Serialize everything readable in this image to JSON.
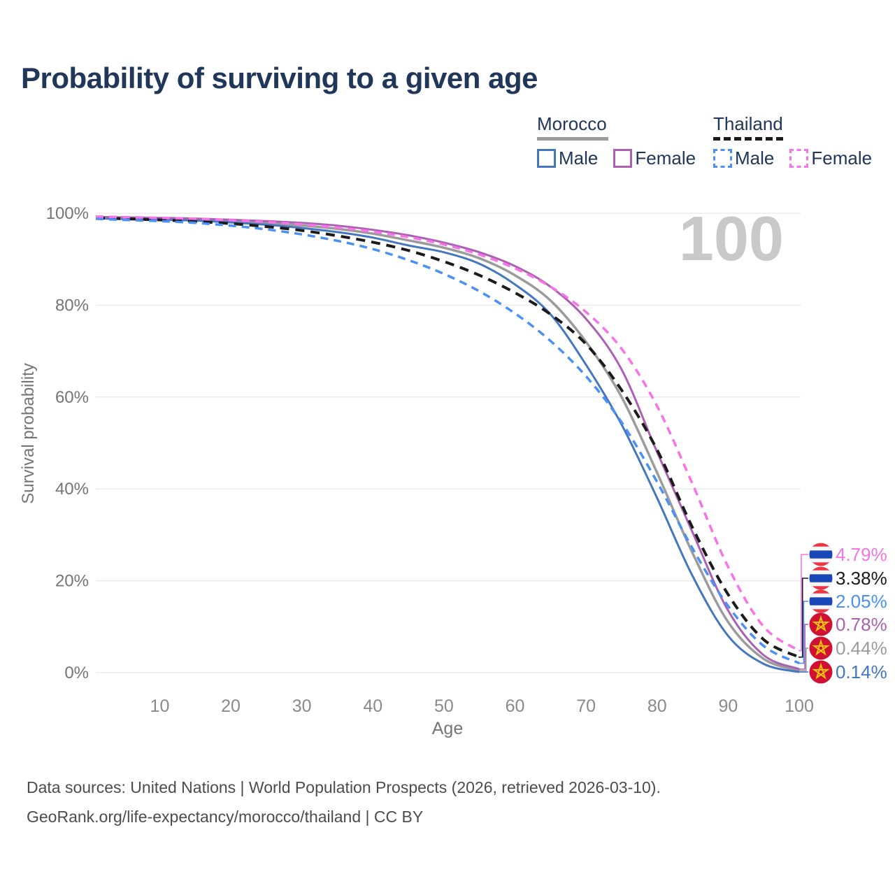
{
  "title": "Probability of surviving to a given age",
  "legend": {
    "groups": [
      {
        "country": "Morocco",
        "line_style": "solid",
        "underline_color": "#9b9b9b",
        "items": [
          {
            "label": "Male",
            "color": "#4577be",
            "dashed": false
          },
          {
            "label": "Female",
            "color": "#ab61b2",
            "dashed": false
          }
        ]
      },
      {
        "country": "Thailand",
        "line_style": "dashed",
        "underline_color": "#1b1b1b",
        "items": [
          {
            "label": "Male",
            "color": "#4b90f5",
            "dashed": true
          },
          {
            "label": "Female",
            "color": "#f873e8",
            "dashed": true
          }
        ]
      }
    ]
  },
  "chart_data": {
    "type": "line",
    "title": "Probability of surviving to a given age",
    "xlabel": "Age",
    "ylabel": "Survival probability",
    "xlim": [
      1,
      100
    ],
    "ylim": [
      0,
      100
    ],
    "grid": "horizontal",
    "watermark": "100",
    "x_ticks": [
      {
        "label": "10",
        "value": 10
      },
      {
        "label": "20",
        "value": 20
      },
      {
        "label": "30",
        "value": 30
      },
      {
        "label": "40",
        "value": 40
      },
      {
        "label": "50",
        "value": 50
      },
      {
        "label": "60",
        "value": 60
      },
      {
        "label": "70",
        "value": 70
      },
      {
        "label": "80",
        "value": 80
      },
      {
        "label": "90",
        "value": 90
      },
      {
        "label": "100",
        "value": 100
      }
    ],
    "y_ticks": [
      {
        "label": "0%",
        "value": 0
      },
      {
        "label": "20%",
        "value": 20
      },
      {
        "label": "40%",
        "value": 40
      },
      {
        "label": "60%",
        "value": 60
      },
      {
        "label": "80%",
        "value": 80
      },
      {
        "label": "100%",
        "value": 100
      }
    ],
    "ages": [
      1,
      5,
      10,
      15,
      20,
      25,
      30,
      35,
      40,
      45,
      50,
      55,
      60,
      65,
      70,
      75,
      80,
      85,
      90,
      95,
      100
    ],
    "series": [
      {
        "id": "morocco-total",
        "country": "Morocco",
        "sex": "combined",
        "color": "#9b9b9b",
        "dashed": false,
        "values": [
          99.05,
          98.9,
          98.8,
          98.6,
          98.3,
          97.9,
          97.35,
          96.6,
          95.55,
          94.1,
          92.5,
          90.2,
          86.5,
          81.0,
          72.0,
          60.0,
          43.5,
          26.0,
          11.0,
          3.0,
          0.44
        ]
      },
      {
        "id": "morocco-male",
        "country": "Morocco",
        "sex": "male",
        "color": "#4577be",
        "dashed": false,
        "values": [
          98.9,
          98.75,
          98.6,
          98.4,
          98.0,
          97.5,
          96.8,
          95.9,
          94.7,
          93.0,
          91.5,
          89.0,
          84.5,
          78.0,
          67.0,
          54.0,
          38.0,
          21.0,
          8.0,
          1.9,
          0.14
        ]
      },
      {
        "id": "morocco-female",
        "country": "Morocco",
        "sex": "female",
        "color": "#ab61b2",
        "dashed": false,
        "values": [
          99.2,
          99.1,
          99.0,
          98.85,
          98.6,
          98.3,
          97.9,
          97.3,
          96.4,
          95.2,
          93.6,
          91.5,
          88.5,
          84.0,
          77.0,
          66.0,
          48.0,
          30.5,
          13.5,
          3.8,
          0.78
        ]
      },
      {
        "id": "thailand-total",
        "country": "Thailand",
        "sex": "combined",
        "color": "#1b1b1b",
        "dashed": true,
        "values": [
          99.0,
          98.8,
          98.55,
          98.2,
          97.75,
          97.1,
          96.25,
          95.1,
          93.7,
          91.9,
          89.5,
          86.5,
          82.7,
          78.0,
          71.5,
          61.5,
          48.5,
          31.5,
          17.0,
          7.2,
          3.38
        ]
      },
      {
        "id": "thailand-male",
        "country": "Thailand",
        "sex": "male",
        "color": "#4b90f5",
        "dashed": true,
        "values": [
          98.8,
          98.55,
          98.3,
          97.9,
          97.3,
          96.5,
          95.4,
          94.0,
          92.2,
          89.8,
          86.8,
          83.0,
          78.2,
          72.2,
          64.5,
          54.5,
          41.5,
          27.0,
          14.5,
          5.8,
          2.05
        ]
      },
      {
        "id": "thailand-female",
        "country": "Thailand",
        "sex": "female",
        "color": "#f873e8",
        "dashed": true,
        "values": [
          99.3,
          99.15,
          99.0,
          98.8,
          98.5,
          98.1,
          97.6,
          96.9,
          96.0,
          94.8,
          93.2,
          91.0,
          88.0,
          84.0,
          78.5,
          70.5,
          58.0,
          41.0,
          23.0,
          10.0,
          4.79
        ]
      }
    ]
  },
  "end_labels": [
    {
      "text": "4.79%",
      "value_percent": 4.79,
      "color": "#f873e8",
      "flag": "thailand"
    },
    {
      "text": "3.38%",
      "value_percent": 3.38,
      "color": "#1b1b1b",
      "flag": "thailand"
    },
    {
      "text": "2.05%",
      "value_percent": 2.05,
      "color": "#4b90f5",
      "flag": "thailand"
    },
    {
      "text": "0.78%",
      "value_percent": 0.78,
      "color": "#ab61b2",
      "flag": "morocco"
    },
    {
      "text": "0.44%",
      "value_percent": 0.44,
      "color": "#9b9b9b",
      "flag": "morocco"
    },
    {
      "text": "0.14%",
      "value_percent": 0.14,
      "color": "#4577be",
      "flag": "morocco"
    }
  ],
  "flag_colors": {
    "thailand_red": "#ef3340",
    "thailand_white": "#f4f5f8",
    "thailand_blue": "#2d2a4a_no",
    "thailand_band": "#1a47b8",
    "morocco_red": "#d21034",
    "morocco_star": "#f1c40f"
  },
  "footer": {
    "line1": "Data sources: United Nations | World Population Prospects (2026, retrieved 2026-03-10).",
    "line2": "GeoRank.org/life-expectancy/morocco/thailand | CC BY"
  }
}
